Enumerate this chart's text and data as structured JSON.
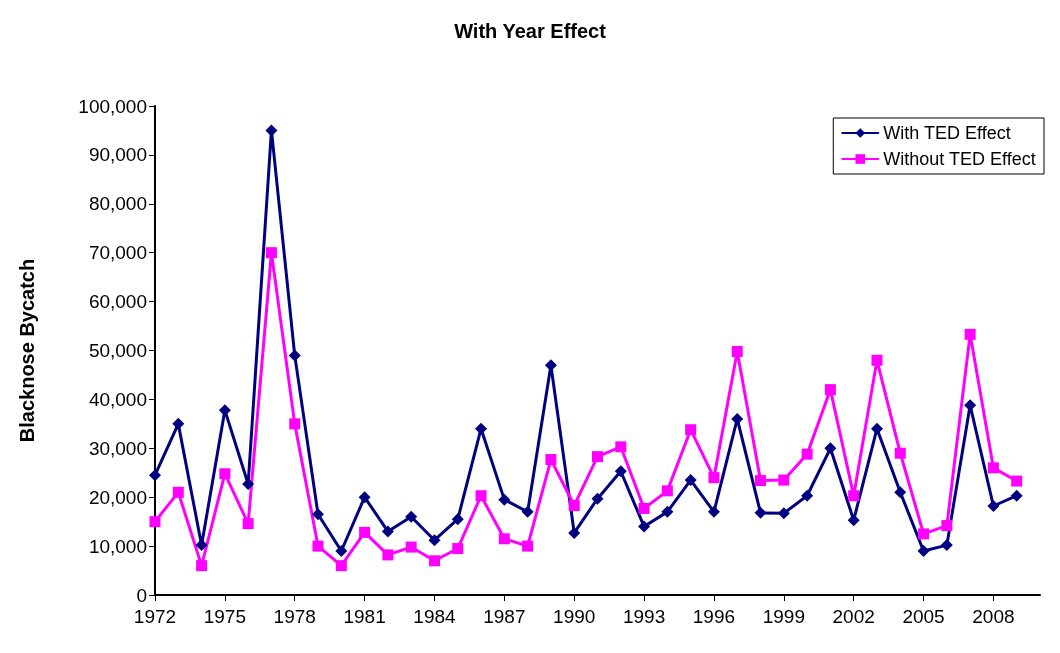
{
  "chart_data": {
    "type": "line",
    "title": "With Year Effect",
    "ylabel": "Blacknose Bycatch",
    "x": [
      1972,
      1973,
      1974,
      1975,
      1976,
      1977,
      1978,
      1979,
      1980,
      1981,
      1982,
      1983,
      1984,
      1985,
      1986,
      1987,
      1988,
      1989,
      1990,
      1991,
      1992,
      1993,
      1994,
      1995,
      1996,
      1997,
      1998,
      1999,
      2000,
      2001,
      2002,
      2003,
      2004,
      2005,
      2006,
      2007,
      2008,
      2009
    ],
    "xlim": [
      1972,
      2010
    ],
    "xticks": [
      1972,
      1975,
      1978,
      1981,
      1984,
      1987,
      1990,
      1993,
      1996,
      1999,
      2002,
      2005,
      2008
    ],
    "ylim": [
      0,
      100000
    ],
    "yticks": [
      0,
      {
        "value": 10000,
        "label": "10,000"
      },
      {
        "value": 20000,
        "label": "20,000"
      },
      {
        "value": 30000,
        "label": "30,000"
      },
      {
        "value": 40000,
        "label": "40,000"
      },
      {
        "value": 50000,
        "label": "50,000"
      },
      {
        "value": 60000,
        "label": "60,000"
      },
      {
        "value": 70000,
        "label": "70,000"
      },
      {
        "value": 80000,
        "label": "80,000"
      },
      {
        "value": 90000,
        "label": "90,000"
      },
      {
        "value": 100000,
        "label": "100,000"
      }
    ],
    "series": [
      {
        "name": "With TED Effect",
        "color": "#000080",
        "marker": "diamond",
        "values": [
          24500,
          35000,
          10200,
          37800,
          22700,
          95000,
          49000,
          16500,
          9000,
          20000,
          13000,
          16000,
          11200,
          15500,
          34000,
          19500,
          17000,
          47000,
          12700,
          19700,
          25300,
          14000,
          17000,
          23500,
          17000,
          36000,
          16800,
          16700,
          20300,
          30000,
          15300,
          34000,
          21000,
          9000,
          10200,
          38800,
          18200,
          20300
        ]
      },
      {
        "name": "Without TED Effect",
        "color": "#ff00ff",
        "marker": "square",
        "values": [
          15000,
          21000,
          6000,
          24800,
          14600,
          70000,
          35000,
          10000,
          6000,
          12800,
          8200,
          9800,
          7000,
          9500,
          20300,
          11500,
          10000,
          27700,
          18300,
          28300,
          30300,
          17700,
          21300,
          33800,
          24000,
          49800,
          23400,
          23500,
          28800,
          42000,
          20300,
          48000,
          29000,
          12500,
          14200,
          53300,
          26000,
          23300
        ]
      }
    ],
    "legend": "top right",
    "grid": false,
    "line_style": "solid"
  }
}
